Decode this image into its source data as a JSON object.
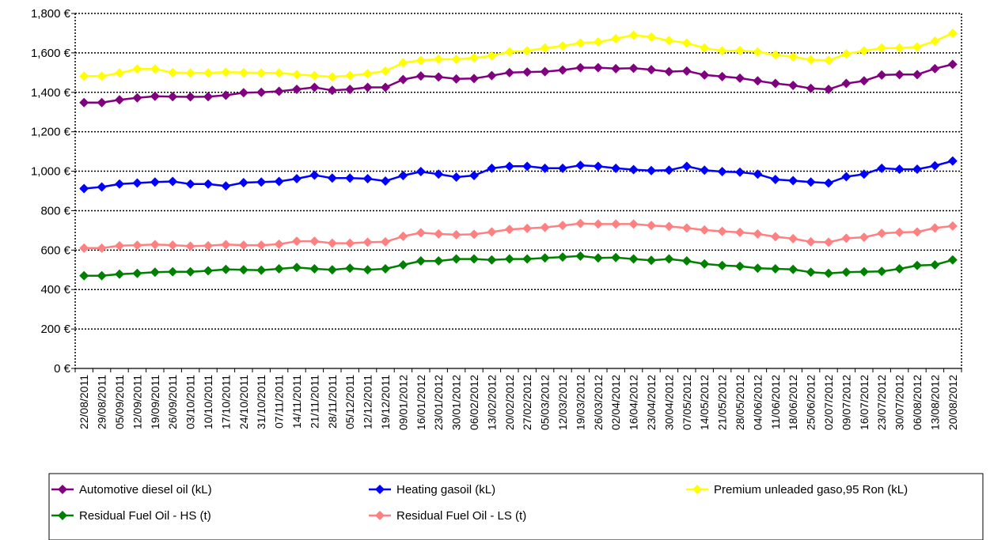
{
  "chart_data": {
    "type": "line",
    "title": "",
    "xlabel": "",
    "ylabel": "",
    "ylim": [
      0,
      1800
    ],
    "y_ticks": [
      "0 €",
      "200 €",
      "400 €",
      "600 €",
      "800 €",
      "1,000 €",
      "1,200 €",
      "1,400 €",
      "1,600 €",
      "1,800 €"
    ],
    "grid": "horizontal dotted",
    "legend_position": "bottom",
    "x": [
      "22/08/2011",
      "29/08/2011",
      "05/09/2011",
      "12/09/2011",
      "19/09/2011",
      "26/09/2011",
      "03/10/2011",
      "10/10/2011",
      "17/10/2011",
      "24/10/2011",
      "31/10/2011",
      "07/11/2011",
      "14/11/2011",
      "21/11/2011",
      "28/11/2011",
      "05/12/2011",
      "12/12/2011",
      "19/12/2011",
      "09/01/2012",
      "16/01/2012",
      "23/01/2012",
      "30/01/2012",
      "06/02/2012",
      "13/02/2012",
      "20/02/2012",
      "27/02/2012",
      "05/03/2012",
      "12/03/2012",
      "19/03/2012",
      "26/03/2012",
      "02/04/2012",
      "16/04/2012",
      "23/04/2012",
      "30/04/2012",
      "07/05/2012",
      "14/05/2012",
      "21/05/2012",
      "28/05/2012",
      "04/06/2012",
      "11/06/2012",
      "18/06/2012",
      "25/06/2012",
      "02/07/2012",
      "09/07/2012",
      "16/07/2012",
      "23/07/2012",
      "30/07/2012",
      "06/08/2012",
      "13/08/2012",
      "20/08/2012"
    ],
    "x_label_indices": [
      0,
      2,
      4,
      6,
      8,
      10,
      12,
      14,
      16,
      18,
      20,
      22,
      24,
      26,
      28,
      30,
      32,
      34,
      36,
      38,
      40,
      42,
      44,
      46,
      48,
      50,
      52,
      54,
      56,
      58,
      60,
      62,
      64,
      66,
      68,
      70,
      72,
      74,
      76,
      78,
      80,
      82,
      84,
      86,
      88,
      90,
      92,
      94,
      96,
      98
    ],
    "series": [
      {
        "name": "Automotive diesel oil (kL)",
        "color": "#800080",
        "values": [
          1348,
          1348,
          1362,
          1372,
          1380,
          1378,
          1377,
          1378,
          1385,
          1398,
          1400,
          1405,
          1415,
          1425,
          1410,
          1415,
          1425,
          1425,
          1465,
          1483,
          1478,
          1468,
          1470,
          1485,
          1500,
          1503,
          1505,
          1513,
          1525,
          1525,
          1520,
          1522,
          1515,
          1505,
          1508,
          1488,
          1480,
          1472,
          1458,
          1445,
          1435,
          1420,
          1415,
          1445,
          1458,
          1488,
          1490,
          1490,
          1520,
          1542
        ]
      },
      {
        "name": "Heating gasoil (kL)",
        "color": "#0000ff",
        "values": [
          912,
          920,
          935,
          940,
          945,
          948,
          935,
          935,
          925,
          942,
          945,
          948,
          962,
          980,
          965,
          965,
          962,
          950,
          978,
          998,
          985,
          970,
          978,
          1015,
          1025,
          1025,
          1015,
          1015,
          1030,
          1025,
          1015,
          1008,
          1003,
          1005,
          1025,
          1005,
          998,
          995,
          985,
          958,
          952,
          945,
          940,
          972,
          985,
          1015,
          1010,
          1010,
          1028,
          1052
        ]
      },
      {
        "name": "Premium unleaded gaso,95 Ron (kL)",
        "color": "#ffff00",
        "values": [
          1482,
          1482,
          1498,
          1518,
          1518,
          1500,
          1498,
          1498,
          1502,
          1500,
          1498,
          1498,
          1490,
          1485,
          1478,
          1485,
          1495,
          1508,
          1550,
          1562,
          1568,
          1568,
          1575,
          1585,
          1605,
          1610,
          1625,
          1635,
          1650,
          1655,
          1672,
          1690,
          1680,
          1662,
          1650,
          1625,
          1610,
          1612,
          1605,
          1590,
          1580,
          1565,
          1562,
          1595,
          1610,
          1625,
          1625,
          1630,
          1660,
          1700
        ]
      },
      {
        "name": "Residual Fuel Oil - HS (t)",
        "color": "#008000",
        "values": [
          470,
          470,
          478,
          482,
          488,
          490,
          490,
          495,
          502,
          500,
          498,
          505,
          512,
          505,
          500,
          508,
          500,
          505,
          525,
          545,
          545,
          555,
          555,
          550,
          555,
          555,
          560,
          565,
          570,
          560,
          562,
          555,
          548,
          555,
          545,
          530,
          522,
          518,
          508,
          505,
          502,
          488,
          482,
          488,
          490,
          492,
          505,
          522,
          525,
          550
        ]
      },
      {
        "name": "Residual Fuel Oil - LS (t)",
        "color": "#ff8080",
        "values": [
          610,
          610,
          622,
          625,
          628,
          625,
          620,
          622,
          628,
          625,
          625,
          630,
          645,
          645,
          635,
          635,
          640,
          642,
          670,
          688,
          682,
          678,
          680,
          692,
          705,
          710,
          715,
          725,
          735,
          732,
          732,
          732,
          725,
          720,
          712,
          702,
          695,
          690,
          682,
          668,
          658,
          642,
          640,
          660,
          665,
          685,
          690,
          692,
          712,
          722
        ]
      }
    ]
  }
}
